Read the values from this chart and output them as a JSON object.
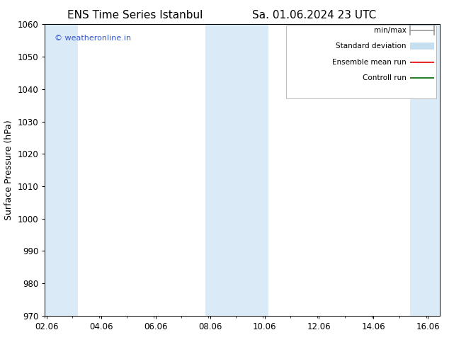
{
  "title_left": "ENS Time Series Istanbul",
  "title_right": "Sa. 01.06.2024 23 UTC",
  "ylabel": "Surface Pressure (hPa)",
  "ylim": [
    970,
    1060
  ],
  "yticks": [
    970,
    980,
    990,
    1000,
    1010,
    1020,
    1030,
    1040,
    1050,
    1060
  ],
  "xlim": [
    2.0,
    16.5
  ],
  "xticks": [
    2.06,
    4.06,
    6.06,
    8.06,
    10.06,
    12.06,
    14.06,
    16.06
  ],
  "xticklabels": [
    "02.06",
    "04.06",
    "06.06",
    "08.06",
    "10.06",
    "12.06",
    "14.06",
    "16.06"
  ],
  "watermark": "© weatheronline.in",
  "watermark_color": "#3355cc",
  "bg_color": "#ffffff",
  "plot_bg_color": "#ffffff",
  "shaded_bands": [
    {
      "xmin": 2.0,
      "xmax": 3.2,
      "color": "#daeaf7"
    },
    {
      "xmin": 7.9,
      "xmax": 10.2,
      "color": "#daeaf7"
    },
    {
      "xmin": 15.4,
      "xmax": 16.5,
      "color": "#daeaf7"
    }
  ],
  "legend_items": [
    {
      "label": "min/max",
      "color": "#999999",
      "lw": 1.2,
      "style": "line_with_cap"
    },
    {
      "label": "Standard deviation",
      "color": "#c5dff0",
      "lw": 7,
      "style": "solid"
    },
    {
      "label": "Ensemble mean run",
      "color": "#dd0000",
      "lw": 1.2,
      "style": "solid"
    },
    {
      "label": "Controll run",
      "color": "#006400",
      "lw": 1.2,
      "style": "solid"
    }
  ],
  "title_fontsize": 11,
  "tick_fontsize": 8.5,
  "ylabel_fontsize": 9,
  "legend_fontsize": 7.5
}
